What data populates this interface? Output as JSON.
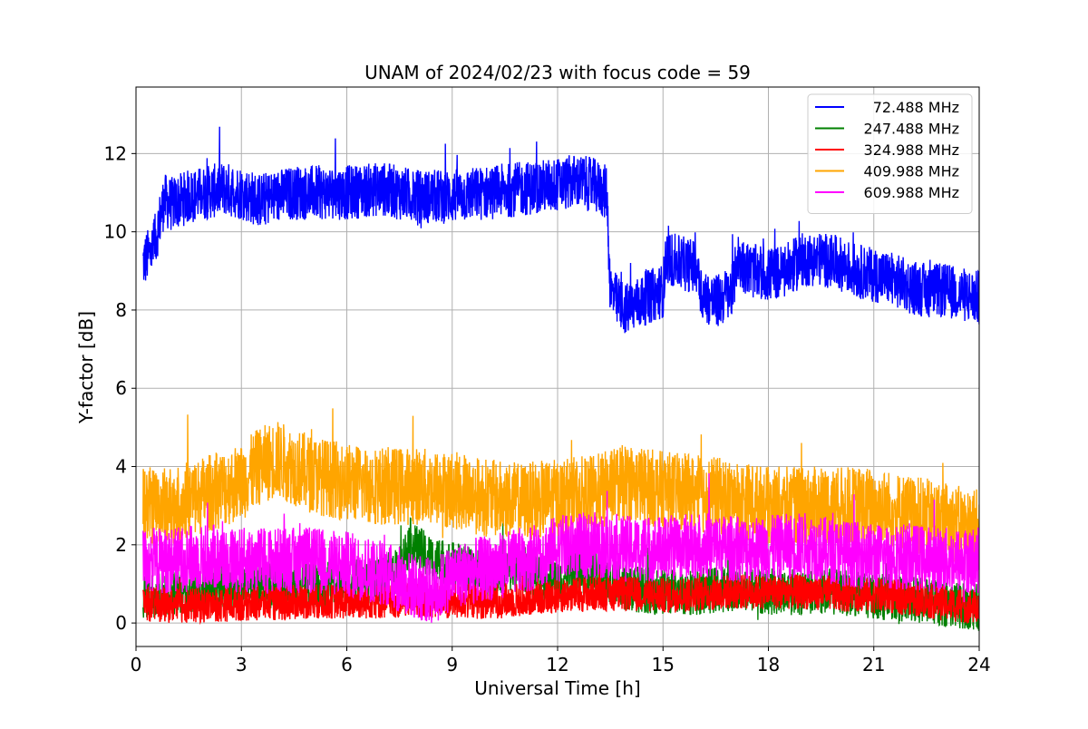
{
  "chart_data": {
    "type": "line",
    "title": "UNAM of 2024/02/23 with focus code = 59",
    "xlabel": "Universal Time [h]",
    "ylabel": "Y-factor [dB]",
    "xlim": [
      0,
      24
    ],
    "ylim": [
      -0.6,
      13.7
    ],
    "xticks": [
      0,
      3,
      6,
      9,
      12,
      15,
      18,
      21,
      24
    ],
    "yticks": [
      0,
      2,
      4,
      6,
      8,
      10,
      12
    ],
    "grid": true,
    "legend": "top-right",
    "series": [
      {
        "name": "72.488 MHz",
        "color": "#0000ff",
        "noise": 0.7,
        "x": [
          0.2,
          0.5,
          0.7,
          0.8,
          1.0,
          1.5,
          2.0,
          2.5,
          3.0,
          3.5,
          4.0,
          4.5,
          5.0,
          6.0,
          7.0,
          8.0,
          9.0,
          10.0,
          11.0,
          12.0,
          12.5,
          13.0,
          13.4,
          13.5,
          13.7,
          14.0,
          14.5,
          15.0,
          15.1,
          15.2,
          15.5,
          16.0,
          16.1,
          16.5,
          17.0,
          17.1,
          17.5,
          18.0,
          18.5,
          19.0,
          19.5,
          20.0,
          20.5,
          21.0,
          21.5,
          22.0,
          22.5,
          23.0,
          23.5,
          24.0
        ],
        "y": [
          9.2,
          9.6,
          10.4,
          10.8,
          10.7,
          10.9,
          11.0,
          11.1,
          11.0,
          10.8,
          10.9,
          11.0,
          11.0,
          11.0,
          11.1,
          10.9,
          10.9,
          11.0,
          11.1,
          11.2,
          11.3,
          11.2,
          11.0,
          8.5,
          8.2,
          8.0,
          8.3,
          8.5,
          9.4,
          9.3,
          9.2,
          9.1,
          8.4,
          8.2,
          8.5,
          9.3,
          9.0,
          8.9,
          9.0,
          9.3,
          9.3,
          9.2,
          9.0,
          8.9,
          8.8,
          8.6,
          8.5,
          8.5,
          8.4,
          8.3
        ]
      },
      {
        "name": "247.488 MHz",
        "color": "#008000",
        "noise": 0.6,
        "x": [
          0.2,
          1.0,
          2.0,
          3.0,
          4.0,
          5.0,
          6.0,
          7.0,
          7.5,
          7.8,
          8.0,
          8.5,
          9.0,
          10.0,
          11.0,
          11.5,
          12.0,
          12.5,
          13.0,
          13.5,
          14.0,
          15.0,
          16.0,
          17.0,
          18.0,
          19.0,
          20.0,
          21.0,
          22.0,
          23.0,
          24.0
        ],
        "y": [
          0.7,
          0.8,
          0.9,
          1.0,
          0.9,
          1.0,
          1.0,
          1.1,
          1.4,
          2.1,
          1.9,
          1.6,
          1.5,
          1.3,
          1.4,
          1.2,
          1.1,
          1.3,
          1.4,
          1.1,
          0.9,
          0.8,
          0.8,
          0.9,
          0.8,
          0.8,
          0.8,
          0.7,
          0.6,
          0.5,
          0.4
        ]
      },
      {
        "name": "324.988 MHz",
        "color": "#ff0000",
        "noise": 0.45,
        "x": [
          0.2,
          1.0,
          2.0,
          3.0,
          4.0,
          5.0,
          6.0,
          7.0,
          8.0,
          9.0,
          10.0,
          11.0,
          12.0,
          13.0,
          14.0,
          15.0,
          16.0,
          17.0,
          18.0,
          19.0,
          20.0,
          21.0,
          22.0,
          23.0,
          24.0
        ],
        "y": [
          0.5,
          0.45,
          0.45,
          0.5,
          0.5,
          0.55,
          0.55,
          0.55,
          0.6,
          0.55,
          0.55,
          0.6,
          0.7,
          0.75,
          0.75,
          0.7,
          0.75,
          0.8,
          0.8,
          0.8,
          0.75,
          0.7,
          0.65,
          0.5,
          0.4
        ]
      },
      {
        "name": "409.988 MHz",
        "color": "#ffa500",
        "noise": 1.0,
        "x": [
          0.2,
          1.0,
          2.0,
          3.0,
          3.5,
          4.0,
          4.5,
          5.0,
          6.0,
          7.0,
          8.0,
          9.0,
          10.0,
          11.0,
          12.0,
          13.0,
          14.0,
          15.0,
          16.0,
          17.0,
          18.0,
          19.0,
          20.0,
          21.0,
          22.0,
          23.0,
          24.0
        ],
        "y": [
          3.0,
          3.0,
          3.3,
          3.6,
          4.0,
          4.2,
          4.0,
          3.8,
          3.6,
          3.5,
          3.5,
          3.4,
          3.2,
          3.1,
          3.2,
          3.3,
          3.6,
          3.4,
          3.3,
          3.2,
          3.0,
          3.0,
          3.0,
          3.0,
          2.8,
          2.6,
          2.4
        ]
      },
      {
        "name": "609.988 MHz",
        "color": "#ff00ff",
        "noise": 0.85,
        "x": [
          0.2,
          1.0,
          2.0,
          3.0,
          4.0,
          5.0,
          6.0,
          7.0,
          8.0,
          8.5,
          9.0,
          10.0,
          11.0,
          12.0,
          13.0,
          14.0,
          15.0,
          16.0,
          17.0,
          18.0,
          19.0,
          20.0,
          21.0,
          22.0,
          23.0,
          24.0
        ],
        "y": [
          1.6,
          1.6,
          1.7,
          1.6,
          1.6,
          1.6,
          1.5,
          1.3,
          0.9,
          0.8,
          1.2,
          1.4,
          1.6,
          1.9,
          2.0,
          1.9,
          1.9,
          2.0,
          1.9,
          1.9,
          2.0,
          1.8,
          1.7,
          1.7,
          1.6,
          1.6
        ]
      }
    ]
  }
}
